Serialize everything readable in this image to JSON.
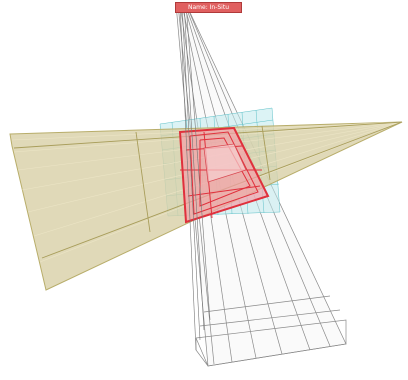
{
  "viewport": {
    "mode_label": "Name: In-Situ",
    "colors": {
      "background": "#ffffff",
      "horizontal_plane_fill": "#d8cfa6",
      "horizontal_plane_edge": "#b8ad6a",
      "vertical_plane_edge": "#8a8a8a",
      "selection_fill": "#f4a0a8",
      "selection_edge": "#e0303c",
      "grid_cells": "#7fd0d6",
      "badge_fill": "#e06060"
    },
    "icons": [
      "selection-highlight",
      "grid-overlay"
    ]
  }
}
